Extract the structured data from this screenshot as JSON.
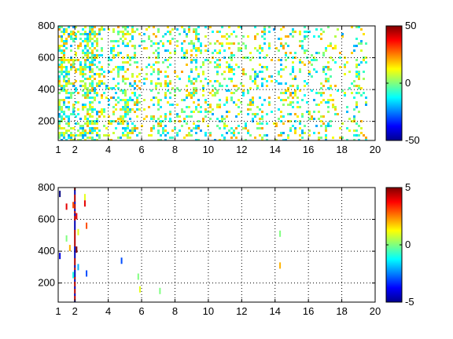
{
  "chart_data": [
    {
      "type": "heatmap",
      "title": "",
      "xlabel": "",
      "ylabel": "",
      "xlim": [
        1,
        20
      ],
      "ylim": [
        80,
        800
      ],
      "xticks": [
        1,
        2,
        4,
        6,
        8,
        10,
        12,
        14,
        16,
        18,
        20
      ],
      "yticks": [
        200,
        400,
        600,
        800
      ],
      "grid": true,
      "colormap": "jet",
      "colorbar": {
        "range": [
          -50,
          50
        ],
        "ticks": [
          50,
          0,
          -50
        ]
      },
      "description_of_fill": "dense sparse scatter of small patches, values mostly near 0 (cyan/green/yellow), coverage densest at x 1-3 and thinning with vertical bands toward x 20",
      "density_profile": [
        {
          "x": [
            1,
            3
          ],
          "density": 0.55
        },
        {
          "x": [
            3,
            6
          ],
          "density": 0.35
        },
        {
          "x": [
            6,
            12
          ],
          "density": 0.25
        },
        {
          "x": [
            12,
            16
          ],
          "density": 0.22
        },
        {
          "x": [
            16,
            19.5
          ],
          "density": 0.2
        }
      ]
    },
    {
      "type": "heatmap",
      "title": "",
      "xlabel": "",
      "ylabel": "",
      "xlim": [
        1,
        20
      ],
      "ylim": [
        80,
        800
      ],
      "xticks": [
        1,
        2,
        4,
        6,
        8,
        10,
        12,
        14,
        16,
        18,
        20
      ],
      "yticks": [
        200,
        400,
        600,
        800
      ],
      "grid": true,
      "colormap": "jet",
      "colorbar": {
        "range": [
          -5,
          5
        ],
        "ticks": [
          5,
          0,
          -5
        ]
      },
      "points": [
        {
          "x": 1.1,
          "y": 760,
          "v": -5
        },
        {
          "x": 1.1,
          "y": 370,
          "v": -4
        },
        {
          "x": 1.5,
          "y": 680,
          "v": 4
        },
        {
          "x": 1.5,
          "y": 480,
          "v": 0
        },
        {
          "x": 1.7,
          "y": 420,
          "v": 2
        },
        {
          "x": 1.9,
          "y": 690,
          "v": 3
        },
        {
          "x": 1.9,
          "y": 250,
          "v": -1
        },
        {
          "x": 2.1,
          "y": 620,
          "v": 4
        },
        {
          "x": 2.1,
          "y": 410,
          "v": 5
        },
        {
          "x": 2.2,
          "y": 520,
          "v": 1
        },
        {
          "x": 2.2,
          "y": 300,
          "v": -2
        },
        {
          "x": 2.6,
          "y": 740,
          "v": 1
        },
        {
          "x": 2.6,
          "y": 700,
          "v": 4
        },
        {
          "x": 2.7,
          "y": 560,
          "v": 3
        },
        {
          "x": 2.7,
          "y": 260,
          "v": -3
        },
        {
          "x": 4.8,
          "y": 340,
          "v": -3
        },
        {
          "x": 5.8,
          "y": 240,
          "v": 0
        },
        {
          "x": 5.9,
          "y": 160,
          "v": 1
        },
        {
          "x": 7.1,
          "y": 150,
          "v": 0
        },
        {
          "x": 14.3,
          "y": 510,
          "v": 0
        },
        {
          "x": 14.3,
          "y": 310,
          "v": 2
        }
      ],
      "vertical_streak": {
        "x": 2.0,
        "y_range": [
          80,
          800
        ]
      }
    }
  ]
}
